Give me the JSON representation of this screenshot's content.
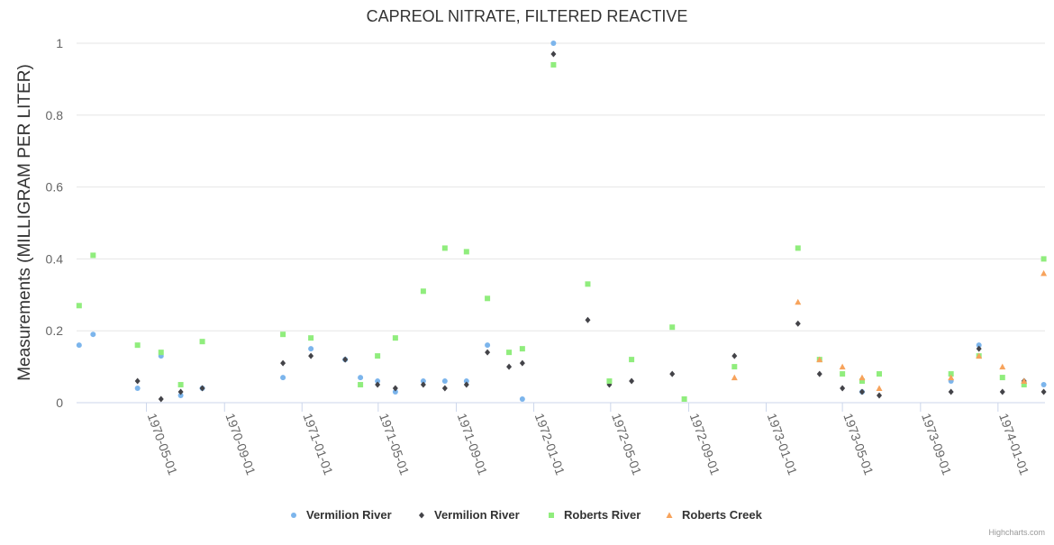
{
  "chart_data": {
    "type": "scatter",
    "title": "CAPREOL NITRATE, FILTERED REACTIVE",
    "xlabel": "",
    "ylabel": "Measurements (MILLIGRAM PER LITER)",
    "credit": "Highcharts.com",
    "ylim": [
      0,
      1
    ],
    "yticks": [
      "0",
      "0.2",
      "0.4",
      "0.6",
      "0.8",
      "1"
    ],
    "xlim": [
      "1970-01-11",
      "1974-03-16"
    ],
    "xticks": [
      "1970-05-01",
      "1970-09-01",
      "1971-01-01",
      "1971-05-01",
      "1971-09-01",
      "1972-01-01",
      "1972-05-01",
      "1972-09-01",
      "1973-01-01",
      "1973-05-01",
      "1973-09-01",
      "1974-01-01"
    ],
    "grid": true,
    "legend_position": "bottom",
    "series": [
      {
        "name": "Vermilion River",
        "marker": "circle",
        "color": "#7cb5ec",
        "points": [
          {
            "x": "1970-01-15",
            "y": 0.16
          },
          {
            "x": "1970-02-06",
            "y": 0.19
          },
          {
            "x": "1970-04-17",
            "y": 0.04
          },
          {
            "x": "1970-05-24",
            "y": 0.13
          },
          {
            "x": "1970-06-24",
            "y": 0.02
          },
          {
            "x": "1970-07-28",
            "y": 0.04
          },
          {
            "x": "1970-12-02",
            "y": 0.07
          },
          {
            "x": "1971-01-15",
            "y": 0.15
          },
          {
            "x": "1971-03-10",
            "y": 0.12
          },
          {
            "x": "1971-04-03",
            "y": 0.07
          },
          {
            "x": "1971-04-30",
            "y": 0.06
          },
          {
            "x": "1971-05-28",
            "y": 0.03
          },
          {
            "x": "1971-07-11",
            "y": 0.06
          },
          {
            "x": "1971-08-14",
            "y": 0.06
          },
          {
            "x": "1971-09-17",
            "y": 0.06
          },
          {
            "x": "1971-10-20",
            "y": 0.16
          },
          {
            "x": "1971-12-14",
            "y": 0.01
          },
          {
            "x": "1972-02-01",
            "y": 1.0
          },
          {
            "x": "1973-06-01",
            "y": 0.03
          },
          {
            "x": "1973-10-19",
            "y": 0.06
          },
          {
            "x": "1973-12-02",
            "y": 0.16
          },
          {
            "x": "1974-03-14",
            "y": 0.05
          }
        ]
      },
      {
        "name": "Vermilion River",
        "marker": "diamond",
        "color": "#434348",
        "points": [
          {
            "x": "1970-04-17",
            "y": 0.06
          },
          {
            "x": "1970-05-24",
            "y": 0.01
          },
          {
            "x": "1970-06-24",
            "y": 0.03
          },
          {
            "x": "1970-07-28",
            "y": 0.04
          },
          {
            "x": "1970-12-02",
            "y": 0.11
          },
          {
            "x": "1971-01-15",
            "y": 0.13
          },
          {
            "x": "1971-03-10",
            "y": 0.12
          },
          {
            "x": "1971-04-30",
            "y": 0.05
          },
          {
            "x": "1971-05-28",
            "y": 0.04
          },
          {
            "x": "1971-07-11",
            "y": 0.05
          },
          {
            "x": "1971-08-14",
            "y": 0.04
          },
          {
            "x": "1971-09-17",
            "y": 0.05
          },
          {
            "x": "1971-10-20",
            "y": 0.14
          },
          {
            "x": "1971-11-23",
            "y": 0.1
          },
          {
            "x": "1971-12-14",
            "y": 0.11
          },
          {
            "x": "1972-02-01",
            "y": 0.97
          },
          {
            "x": "1972-03-26",
            "y": 0.23
          },
          {
            "x": "1972-04-29",
            "y": 0.05
          },
          {
            "x": "1972-06-03",
            "y": 0.06
          },
          {
            "x": "1972-08-06",
            "y": 0.08
          },
          {
            "x": "1972-11-12",
            "y": 0.13
          },
          {
            "x": "1973-02-20",
            "y": 0.22
          },
          {
            "x": "1973-03-26",
            "y": 0.08
          },
          {
            "x": "1973-05-01",
            "y": 0.04
          },
          {
            "x": "1973-06-01",
            "y": 0.03
          },
          {
            "x": "1973-06-28",
            "y": 0.02
          },
          {
            "x": "1973-10-19",
            "y": 0.03
          },
          {
            "x": "1973-12-02",
            "y": 0.15
          },
          {
            "x": "1974-01-08",
            "y": 0.03
          },
          {
            "x": "1974-02-11",
            "y": 0.06
          },
          {
            "x": "1974-03-14",
            "y": 0.03
          }
        ]
      },
      {
        "name": "Roberts River",
        "marker": "square",
        "color": "#90ed7d",
        "points": [
          {
            "x": "1970-01-15",
            "y": 0.27
          },
          {
            "x": "1970-02-06",
            "y": 0.41
          },
          {
            "x": "1970-04-17",
            "y": 0.16
          },
          {
            "x": "1970-05-24",
            "y": 0.14
          },
          {
            "x": "1970-06-24",
            "y": 0.05
          },
          {
            "x": "1970-07-28",
            "y": 0.17
          },
          {
            "x": "1970-12-02",
            "y": 0.19
          },
          {
            "x": "1971-01-15",
            "y": 0.18
          },
          {
            "x": "1971-04-03",
            "y": 0.05
          },
          {
            "x": "1971-04-30",
            "y": 0.13
          },
          {
            "x": "1971-05-28",
            "y": 0.18
          },
          {
            "x": "1971-07-11",
            "y": 0.31
          },
          {
            "x": "1971-08-14",
            "y": 0.43
          },
          {
            "x": "1971-09-17",
            "y": 0.42
          },
          {
            "x": "1971-10-20",
            "y": 0.29
          },
          {
            "x": "1971-11-23",
            "y": 0.14
          },
          {
            "x": "1971-12-14",
            "y": 0.15
          },
          {
            "x": "1972-02-01",
            "y": 0.94
          },
          {
            "x": "1972-03-26",
            "y": 0.33
          },
          {
            "x": "1972-04-29",
            "y": 0.06
          },
          {
            "x": "1972-06-03",
            "y": 0.12
          },
          {
            "x": "1972-08-06",
            "y": 0.21
          },
          {
            "x": "1972-08-25",
            "y": 0.01
          },
          {
            "x": "1972-11-12",
            "y": 0.1
          },
          {
            "x": "1973-02-20",
            "y": 0.43
          },
          {
            "x": "1973-03-26",
            "y": 0.12
          },
          {
            "x": "1973-05-01",
            "y": 0.08
          },
          {
            "x": "1973-06-01",
            "y": 0.06
          },
          {
            "x": "1973-06-28",
            "y": 0.08
          },
          {
            "x": "1973-10-19",
            "y": 0.08
          },
          {
            "x": "1973-12-02",
            "y": 0.13
          },
          {
            "x": "1974-01-08",
            "y": 0.07
          },
          {
            "x": "1974-02-11",
            "y": 0.05
          },
          {
            "x": "1974-03-14",
            "y": 0.4
          }
        ]
      },
      {
        "name": "Roberts Creek",
        "marker": "triangle",
        "color": "#f7a35c",
        "points": [
          {
            "x": "1972-11-12",
            "y": 0.07
          },
          {
            "x": "1973-02-20",
            "y": 0.28
          },
          {
            "x": "1973-03-26",
            "y": 0.12
          },
          {
            "x": "1973-05-01",
            "y": 0.1
          },
          {
            "x": "1973-06-01",
            "y": 0.07
          },
          {
            "x": "1973-06-28",
            "y": 0.04
          },
          {
            "x": "1973-10-19",
            "y": 0.07
          },
          {
            "x": "1973-12-02",
            "y": 0.13
          },
          {
            "x": "1974-01-08",
            "y": 0.1
          },
          {
            "x": "1974-02-11",
            "y": 0.06
          },
          {
            "x": "1974-03-14",
            "y": 0.36
          }
        ]
      }
    ]
  }
}
